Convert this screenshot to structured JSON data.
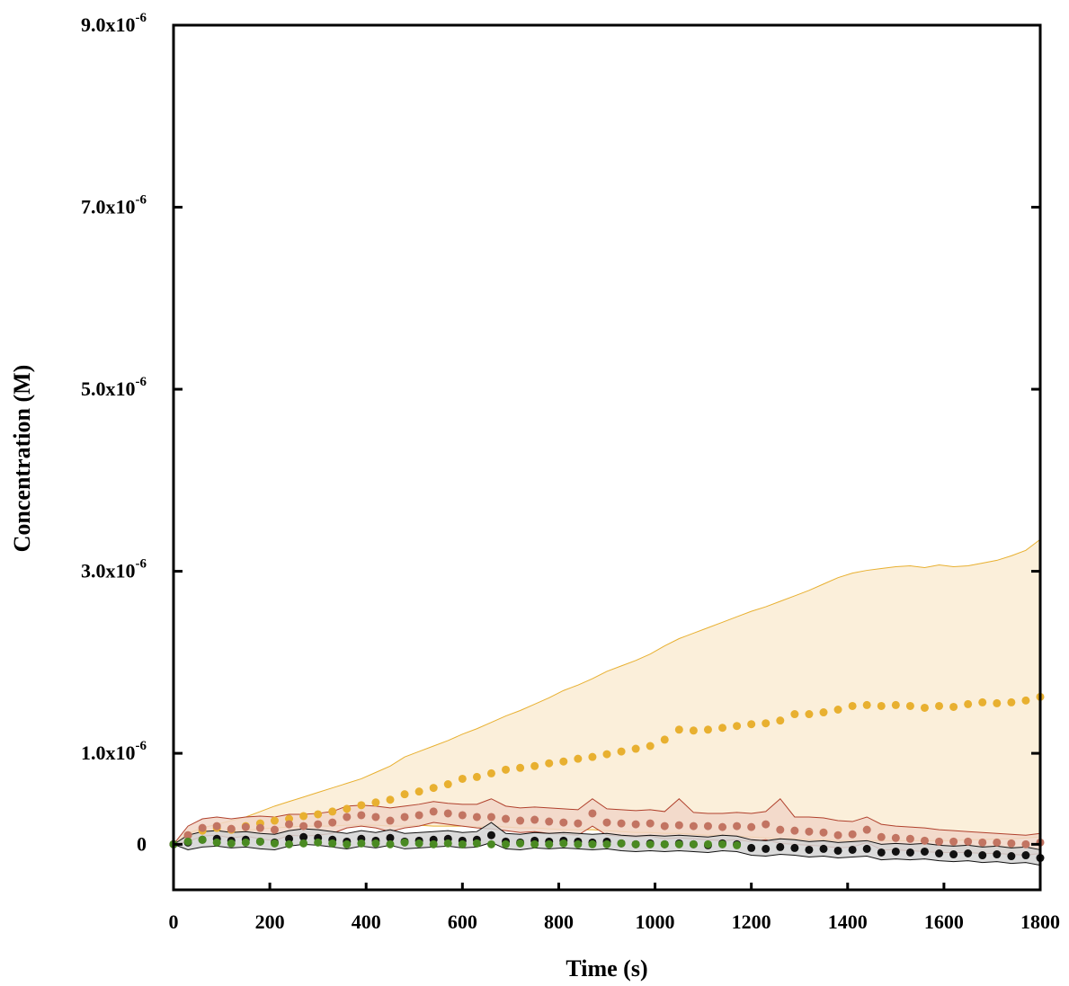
{
  "chart_data": {
    "type": "scatter",
    "x_label": "Time (s)",
    "y_label": "Concentration (M)",
    "xlim": [
      0,
      1800
    ],
    "ylim": [
      -5e-07,
      9e-06
    ],
    "xticks": [
      0,
      200,
      400,
      600,
      800,
      1000,
      1200,
      1400,
      1600,
      1800
    ],
    "yticks": [
      0,
      {
        "value": 1e-06,
        "label": "1.0x10-6"
      },
      {
        "value": 3e-06,
        "label": "3.0x10-6"
      },
      {
        "value": 5e-06,
        "label": "5.0x10-6"
      },
      {
        "value": 7e-06,
        "label": "7.0x10-6"
      },
      {
        "value": 9e-06,
        "label": "9.0x10-6"
      }
    ],
    "x": [
      0,
      30,
      60,
      90,
      120,
      150,
      180,
      210,
      240,
      270,
      300,
      330,
      360,
      390,
      420,
      450,
      480,
      510,
      540,
      570,
      600,
      630,
      660,
      690,
      720,
      750,
      780,
      810,
      840,
      870,
      900,
      930,
      960,
      990,
      1020,
      1050,
      1080,
      1110,
      1140,
      1170,
      1200,
      1230,
      1260,
      1290,
      1320,
      1350,
      1380,
      1410,
      1440,
      1470,
      1500,
      1530,
      1560,
      1590,
      1620,
      1650,
      1680,
      1710,
      1740,
      1770,
      1800
    ],
    "series": [
      {
        "color": "#e8b030",
        "band_color": "#faecd3",
        "values": [
          0,
          1e-07,
          1.5e-07,
          1.8e-07,
          1.6e-07,
          2e-07,
          2.3e-07,
          2.6e-07,
          2.8e-07,
          3.1e-07,
          3.3e-07,
          3.6e-07,
          3.9e-07,
          4.3e-07,
          4.6e-07,
          4.9e-07,
          5.5e-07,
          5.8e-07,
          6.2e-07,
          6.6e-07,
          7.2e-07,
          7.4e-07,
          7.8e-07,
          8.2e-07,
          8.4e-07,
          8.6e-07,
          8.9e-07,
          9.1e-07,
          9.4e-07,
          9.6e-07,
          9.9e-07,
          1.02e-06,
          1.05e-06,
          1.08e-06,
          1.15e-06,
          1.26e-06,
          1.25e-06,
          1.26e-06,
          1.28e-06,
          1.3e-06,
          1.32e-06,
          1.33e-06,
          1.36e-06,
          1.43e-06,
          1.43e-06,
          1.45e-06,
          1.48e-06,
          1.52e-06,
          1.53e-06,
          1.52e-06,
          1.53e-06,
          1.52e-06,
          1.5e-06,
          1.52e-06,
          1.51e-06,
          1.54e-06,
          1.56e-06,
          1.55e-06,
          1.56e-06,
          1.58e-06,
          1.62e-06
        ],
        "upper": [
          0,
          1.2e-07,
          1.8e-07,
          2.2e-07,
          2.6e-07,
          3e-07,
          3.6e-07,
          4.2e-07,
          4.7e-07,
          5.2e-07,
          5.7e-07,
          6.2e-07,
          6.7e-07,
          7.2e-07,
          7.9e-07,
          8.6e-07,
          9.6e-07,
          1.02e-06,
          1.08e-06,
          1.14e-06,
          1.21e-06,
          1.27e-06,
          1.34e-06,
          1.41e-06,
          1.47e-06,
          1.54e-06,
          1.61e-06,
          1.69e-06,
          1.75e-06,
          1.82e-06,
          1.9e-06,
          1.96e-06,
          2.02e-06,
          2.09e-06,
          2.18e-06,
          2.26e-06,
          2.32e-06,
          2.38e-06,
          2.44e-06,
          2.5e-06,
          2.56e-06,
          2.61e-06,
          2.67e-06,
          2.73e-06,
          2.79e-06,
          2.86e-06,
          2.93e-06,
          2.98e-06,
          3.01e-06,
          3.03e-06,
          3.05e-06,
          3.06e-06,
          3.04e-06,
          3.07e-06,
          3.05e-06,
          3.06e-06,
          3.09e-06,
          3.12e-06,
          3.17e-06,
          3.23e-06,
          3.35e-06
        ],
        "lower": [
          0,
          8e-08,
          1.2e-07,
          1.4e-07,
          1.3e-07,
          1.5e-07,
          1.7e-07,
          1.8e-07,
          1.9e-07,
          2e-07,
          2e-07,
          2e-07,
          2.1e-07,
          2.1e-07,
          2.1e-07,
          2e-07,
          2e-07,
          2.1e-07,
          2e-07,
          2e-07,
          2e-07,
          1.9e-07,
          2e-07,
          1.9e-07,
          1.8e-07,
          1.8e-07,
          1.7e-07,
          1.6e-07,
          1.6e-07,
          1.6e-07,
          1.5e-07,
          1.4e-07,
          1.3e-07,
          1.3e-07,
          1.2e-07,
          1.2e-07,
          1.1e-07,
          1e-07,
          1e-07,
          9e-08,
          8e-08,
          7e-08,
          6e-08,
          6e-08,
          5e-08,
          5e-08,
          4e-08,
          4e-08,
          4e-08,
          4e-08,
          4e-08,
          4e-08,
          4e-08,
          4e-08,
          4e-08,
          5e-08,
          5e-08,
          6e-08,
          6e-08,
          7e-08,
          8e-08
        ]
      },
      {
        "color": "#c27462",
        "band_color": "#f1d6c8",
        "edge_color": "#b0402c",
        "values": [
          0,
          1e-07,
          1.8e-07,
          2e-07,
          1.7e-07,
          1.9e-07,
          1.8e-07,
          1.6e-07,
          2.2e-07,
          2e-07,
          2.2e-07,
          2.4e-07,
          3e-07,
          3.2e-07,
          3e-07,
          2.6e-07,
          3e-07,
          3.2e-07,
          3.6e-07,
          3.4e-07,
          3.2e-07,
          3e-07,
          3e-07,
          2.8e-07,
          2.6e-07,
          2.7e-07,
          2.5e-07,
          2.4e-07,
          2.3e-07,
          3.4e-07,
          2.4e-07,
          2.3e-07,
          2.2e-07,
          2.3e-07,
          2e-07,
          2.1e-07,
          2e-07,
          2e-07,
          1.9e-07,
          2e-07,
          1.9e-07,
          2.2e-07,
          1.6e-07,
          1.5e-07,
          1.4e-07,
          1.3e-07,
          1e-07,
          1.1e-07,
          1.6e-07,
          8e-08,
          7e-08,
          6e-08,
          4e-08,
          3e-08,
          3e-08,
          3e-08,
          2e-08,
          2e-08,
          1e-08,
          0,
          2e-08
        ],
        "upper": [
          0,
          2e-07,
          2.8e-07,
          3e-07,
          2.8e-07,
          3e-07,
          3.1e-07,
          3e-07,
          3.3e-07,
          3.3e-07,
          3.4e-07,
          3.6e-07,
          4.2e-07,
          4.3e-07,
          4.2e-07,
          4e-07,
          4.2e-07,
          4.4e-07,
          4.7e-07,
          4.5e-07,
          4.4e-07,
          4.4e-07,
          5e-07,
          4.2e-07,
          4e-07,
          4.1e-07,
          4e-07,
          3.9e-07,
          3.8e-07,
          5e-07,
          3.9e-07,
          3.8e-07,
          3.7e-07,
          3.8e-07,
          3.6e-07,
          5e-07,
          3.5e-07,
          3.4e-07,
          3.4e-07,
          3.5e-07,
          3.4e-07,
          3.6e-07,
          5e-07,
          3e-07,
          3e-07,
          2.9e-07,
          2.6e-07,
          2.5e-07,
          3e-07,
          2.2e-07,
          2e-07,
          1.9e-07,
          1.8e-07,
          1.6e-07,
          1.5e-07,
          1.4e-07,
          1.3e-07,
          1.2e-07,
          1.1e-07,
          1e-07,
          1.2e-07
        ],
        "lower": [
          0,
          3e-08,
          9e-08,
          1e-07,
          7e-08,
          9e-08,
          6e-08,
          4e-08,
          1e-07,
          9e-08,
          1e-07,
          1.2e-07,
          1.8e-07,
          2e-07,
          1.8e-07,
          1.4e-07,
          1.8e-07,
          2e-07,
          2.4e-07,
          2.2e-07,
          2e-07,
          1.8e-07,
          1.7e-07,
          1.5e-07,
          1.3e-07,
          1.4e-07,
          1.2e-07,
          1.1e-07,
          1e-07,
          2e-07,
          1e-07,
          9e-08,
          8e-08,
          9e-08,
          6e-08,
          7e-08,
          6e-08,
          5e-08,
          4e-08,
          5e-08,
          3e-08,
          5e-08,
          1e-08,
          0,
          -1e-08,
          -2e-08,
          -4e-08,
          -3e-08,
          2e-08,
          -6e-08,
          -6e-08,
          -7e-08,
          -8e-08,
          -9e-08,
          -9e-08,
          -9e-08,
          -1e-07,
          -1e-07,
          -1.1e-07,
          -1.2e-07,
          -1e-07
        ]
      },
      {
        "color": "#111111",
        "band_color": "#d4d4d4",
        "values": [
          0,
          2e-08,
          5e-08,
          6e-08,
          4e-08,
          5e-08,
          3e-08,
          2e-08,
          6e-08,
          8e-08,
          7e-08,
          5e-08,
          3e-08,
          6e-08,
          4e-08,
          7e-08,
          3e-08,
          4e-08,
          5e-08,
          6e-08,
          4e-08,
          5e-08,
          1e-07,
          3e-08,
          2e-08,
          4e-08,
          3e-08,
          4e-08,
          3e-08,
          2e-08,
          3e-08,
          1e-08,
          0,
          1e-08,
          0,
          1e-08,
          0,
          -1e-08,
          1e-08,
          0,
          -4e-08,
          -5e-08,
          -3e-08,
          -4e-08,
          -6e-08,
          -5e-08,
          -7e-08,
          -6e-08,
          -5e-08,
          -9e-08,
          -8e-08,
          -9e-08,
          -8e-08,
          -1e-07,
          -1.1e-07,
          -1e-07,
          -1.2e-07,
          -1.1e-07,
          -1.3e-07,
          -1.2e-07,
          -1.5e-07
        ],
        "upper": [
          0,
          1e-07,
          1.4e-07,
          1.5e-07,
          1.3e-07,
          1.4e-07,
          1.2e-07,
          1.1e-07,
          1.5e-07,
          1.7e-07,
          1.6e-07,
          1.4e-07,
          1.2e-07,
          1.5e-07,
          1.3e-07,
          1.6e-07,
          1.2e-07,
          1.3e-07,
          1.4e-07,
          1.5e-07,
          1.3e-07,
          1.4e-07,
          2.4e-07,
          1.2e-07,
          1.1e-07,
          1.3e-07,
          1.2e-07,
          1.3e-07,
          1.2e-07,
          1.1e-07,
          1.2e-07,
          1e-07,
          9e-08,
          1e-07,
          9e-08,
          1e-07,
          9e-08,
          8e-08,
          1e-07,
          9e-08,
          5e-08,
          4e-08,
          6e-08,
          5e-08,
          3e-08,
          4e-08,
          2e-08,
          3e-08,
          4e-08,
          0,
          1e-08,
          0,
          1e-08,
          -1e-08,
          -2e-08,
          -1e-08,
          -3e-08,
          -2e-08,
          -4e-08,
          -3e-08,
          -6e-08
        ],
        "lower": [
          0,
          -6e-08,
          -3e-08,
          -2e-08,
          -4e-08,
          -3e-08,
          -5e-08,
          -6e-08,
          -2e-08,
          0,
          -1e-08,
          -3e-08,
          -5e-08,
          -2e-08,
          -4e-08,
          -1e-08,
          -5e-08,
          -4e-08,
          -3e-08,
          -2e-08,
          -4e-08,
          -3e-08,
          2e-08,
          -5e-08,
          -6e-08,
          -4e-08,
          -5e-08,
          -4e-08,
          -5e-08,
          -6e-08,
          -5e-08,
          -7e-08,
          -8e-08,
          -7e-08,
          -8e-08,
          -7e-08,
          -8e-08,
          -9e-08,
          -7e-08,
          -8e-08,
          -1.2e-07,
          -1.3e-07,
          -1.1e-07,
          -1.2e-07,
          -1.4e-07,
          -1.3e-07,
          -1.5e-07,
          -1.4e-07,
          -1.3e-07,
          -1.7e-07,
          -1.6e-07,
          -1.7e-07,
          -1.6e-07,
          -1.8e-07,
          -1.9e-07,
          -1.8e-07,
          -2e-07,
          -1.9e-07,
          -2.1e-07,
          -2e-07,
          -2.3e-07
        ]
      },
      {
        "color": "#4a8a22",
        "values": [
          0,
          3e-08,
          5e-08,
          2e-08,
          1e-08,
          2e-08,
          3e-08,
          1e-08,
          0,
          1e-08,
          2e-08,
          1e-08,
          0,
          1e-08,
          1e-08,
          0,
          2e-08,
          1e-08,
          0,
          1e-08,
          0,
          1e-08,
          0,
          0,
          1e-08,
          0,
          0,
          1e-08,
          0,
          0,
          0,
          1e-08,
          0,
          0,
          0,
          0,
          0,
          0,
          0,
          -1e-08,
          null,
          null,
          null,
          null,
          null,
          null,
          null,
          null,
          null,
          null,
          null,
          null,
          null,
          null,
          null,
          null,
          null,
          null,
          null,
          null,
          null
        ]
      }
    ]
  }
}
